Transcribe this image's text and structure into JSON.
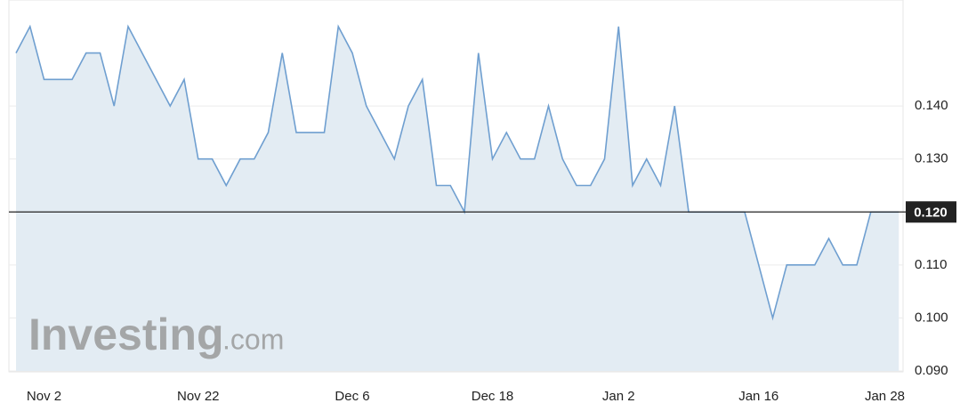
{
  "chart_data": {
    "type": "area",
    "categories": [
      null,
      null,
      "Nov 2",
      null,
      null,
      null,
      null,
      null,
      null,
      null,
      null,
      null,
      null,
      "Nov 22",
      null,
      null,
      null,
      null,
      null,
      null,
      null,
      null,
      null,
      null,
      "Dec 6",
      null,
      null,
      null,
      null,
      null,
      null,
      null,
      null,
      null,
      "Dec 18",
      null,
      null,
      null,
      null,
      null,
      null,
      null,
      null,
      "Jan 2",
      null,
      null,
      null,
      null,
      null,
      null,
      null,
      null,
      null,
      "Jan 16",
      null,
      null,
      null,
      null,
      null,
      null,
      null,
      null,
      "Jan 28",
      null
    ],
    "values": [
      0.15,
      0.155,
      0.145,
      0.145,
      0.145,
      0.15,
      0.15,
      0.14,
      0.155,
      0.15,
      0.145,
      0.14,
      0.145,
      0.13,
      0.13,
      0.125,
      0.13,
      0.13,
      0.135,
      0.15,
      0.135,
      0.135,
      0.135,
      0.155,
      0.15,
      0.14,
      0.135,
      0.13,
      0.14,
      0.145,
      0.125,
      0.125,
      0.12,
      0.15,
      0.13,
      0.135,
      0.13,
      0.13,
      0.14,
      0.13,
      0.125,
      0.125,
      0.13,
      0.155,
      0.125,
      0.13,
      0.125,
      0.14,
      0.12,
      0.12,
      0.12,
      0.12,
      0.12,
      0.11,
      0.1,
      0.11,
      0.11,
      0.11,
      0.115,
      0.11,
      0.11,
      0.12,
      0.12,
      0.12
    ],
    "color": "#6f9fd0",
    "fill": "#e3ecf3",
    "ylim": [
      0.09,
      0.16
    ],
    "yticks": [
      {
        "value": 0.09,
        "label": "0.090"
      },
      {
        "value": 0.1,
        "label": "0.100"
      },
      {
        "value": 0.11,
        "label": "0.110"
      },
      {
        "value": 0.13,
        "label": "0.130"
      },
      {
        "value": 0.14,
        "label": "0.140"
      }
    ],
    "last_price": {
      "value": 0.12,
      "label": "0.120"
    },
    "grid": true,
    "watermark_brand": "Investing",
    "watermark_suffix": ".com"
  }
}
